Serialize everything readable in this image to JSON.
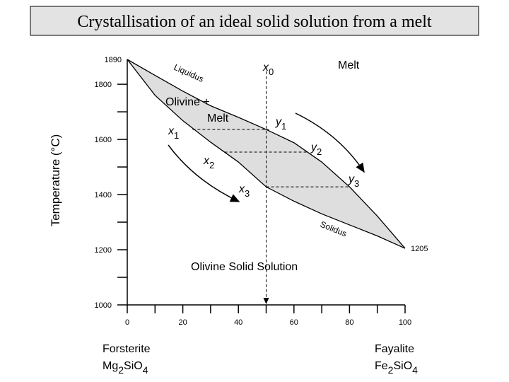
{
  "chart_data": {
    "type": "phase",
    "title": "Crystallisation of an ideal solid solution from a melt",
    "y_label": "Temperature (°C)",
    "xlim": [
      0,
      100
    ],
    "ylim": [
      1000,
      1890
    ],
    "xticks": [
      0,
      20,
      40,
      60,
      80,
      100
    ],
    "minor_xticks": [
      10,
      30,
      50,
      70,
      90
    ],
    "yticks": [
      1000,
      1200,
      1400,
      1600,
      1800
    ],
    "minor_yticks": [
      1100,
      1300,
      1500,
      1700
    ],
    "series": [
      {
        "name": "Liquidus",
        "color": "#000000",
        "x": [
          0,
          10,
          20,
          30,
          40,
          50,
          60,
          70,
          80,
          90,
          100
        ],
        "y": [
          1890,
          1832,
          1775,
          1722,
          1680,
          1636,
          1588,
          1518,
          1428,
          1322,
          1205
        ]
      },
      {
        "name": "Solidus",
        "color": "#000000",
        "x": [
          0,
          10,
          20,
          30,
          40,
          50,
          60,
          70,
          80,
          90,
          100
        ],
        "y": [
          1890,
          1760,
          1668,
          1590,
          1518,
          1428,
          1376,
          1330,
          1290,
          1250,
          1205
        ]
      }
    ],
    "tie_lines": [
      {
        "y": 1636,
        "x": [
          23.5,
          51
        ]
      },
      {
        "y": 1554,
        "x": [
          35,
          65
        ]
      },
      {
        "y": 1428,
        "x": [
          50,
          80
        ]
      }
    ],
    "composition": {
      "x": 50,
      "y": [
        1865,
        1000
      ]
    },
    "annotations": {
      "melt": "Melt",
      "olivine_plus": "Olivine +",
      "olivine_melt": "Melt",
      "solid_solution": "Olivine Solid Solution",
      "x0": [
        "x",
        "0"
      ],
      "x1": [
        "x",
        "1"
      ],
      "x2": [
        "x",
        "2"
      ],
      "x3": [
        "x",
        "3"
      ],
      "y1": [
        "y",
        "1"
      ],
      "y2": [
        "y",
        "2"
      ],
      "y3": [
        "y",
        "3"
      ]
    },
    "end_members": [
      {
        "name": "Forsterite",
        "formula": [
          "Mg",
          "2",
          "SiO",
          "4"
        ]
      },
      {
        "name": "Fayalite",
        "formula": [
          "Fe",
          "2",
          "SiO",
          "4"
        ]
      }
    ]
  }
}
